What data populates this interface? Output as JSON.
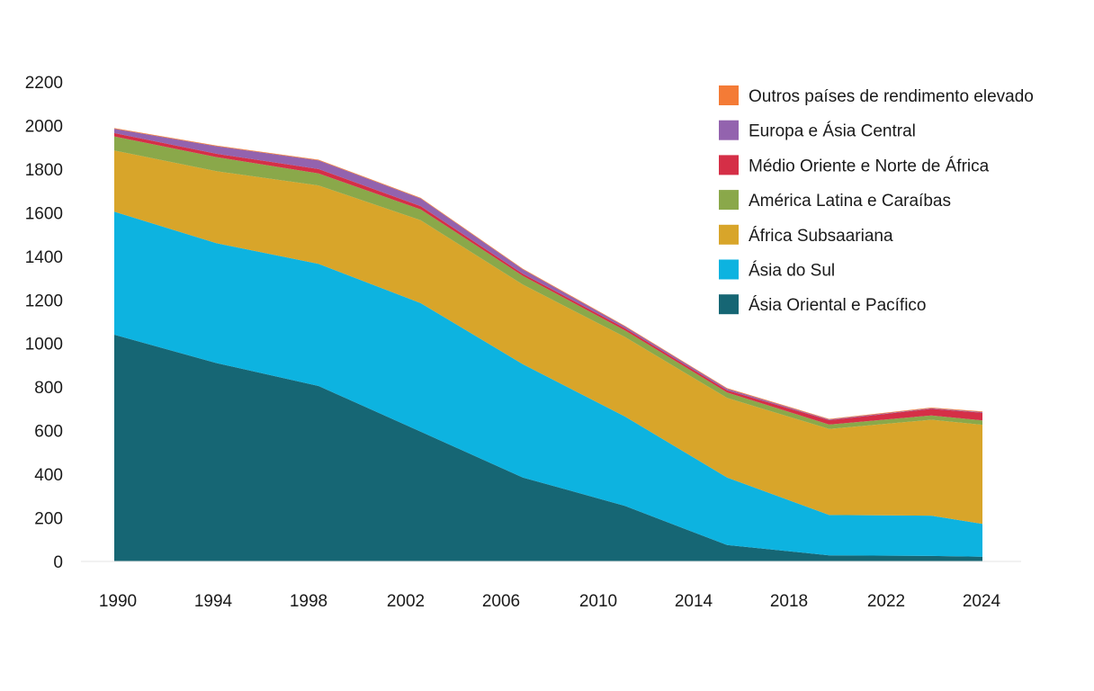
{
  "chart_data": {
    "type": "area",
    "stacked": true,
    "title": "",
    "xlabel": "",
    "ylabel": "",
    "x": [
      1990,
      1994,
      1998,
      2002,
      2006,
      2010,
      2014,
      2018,
      2022,
      2024
    ],
    "x_tick_labels": [
      "1990",
      "1994",
      "1998",
      "2002",
      "2006",
      "2010",
      "2014",
      "2018",
      "2022",
      "2024"
    ],
    "ylim": [
      0,
      2200
    ],
    "y_ticks": [
      0,
      200,
      400,
      600,
      800,
      1000,
      1200,
      1400,
      1600,
      1800,
      2000,
      2200
    ],
    "y_tick_labels": [
      "0",
      "200",
      "400",
      "600",
      "800",
      "1000",
      "1200",
      "1400",
      "1600",
      "1800",
      "2000",
      "2200"
    ],
    "grid": false,
    "legend_position": "top-right",
    "series": [
      {
        "name": "Ásia Oriental e Pacífico",
        "color": "#166674",
        "values": [
          1040,
          910,
          805,
          595,
          385,
          255,
          75,
          28,
          25,
          22
        ]
      },
      {
        "name": "Ásia do Sul",
        "color": "#0db3e0",
        "values": [
          565,
          550,
          560,
          590,
          520,
          410,
          310,
          185,
          185,
          150
        ]
      },
      {
        "name": "África Subsaariana",
        "color": "#d8a52a",
        "values": [
          280,
          330,
          360,
          380,
          365,
          365,
          365,
          395,
          440,
          455
        ]
      },
      {
        "name": "América Latina e Caraíbas",
        "color": "#8aa84a",
        "values": [
          65,
          65,
          55,
          50,
          40,
          30,
          25,
          20,
          20,
          20
        ]
      },
      {
        "name": "Médio Oriente e Norte de África",
        "color": "#d52f47",
        "values": [
          15,
          15,
          20,
          15,
          10,
          10,
          10,
          20,
          30,
          35
        ]
      },
      {
        "name": "Europa e Ásia Central",
        "color": "#9363ae",
        "values": [
          20,
          35,
          40,
          35,
          20,
          8,
          7,
          3,
          3,
          3
        ]
      },
      {
        "name": "Outros países de rendimento elevado",
        "color": "#f47b36",
        "values": [
          3,
          3,
          3,
          3,
          3,
          3,
          3,
          3,
          3,
          3
        ]
      }
    ]
  }
}
